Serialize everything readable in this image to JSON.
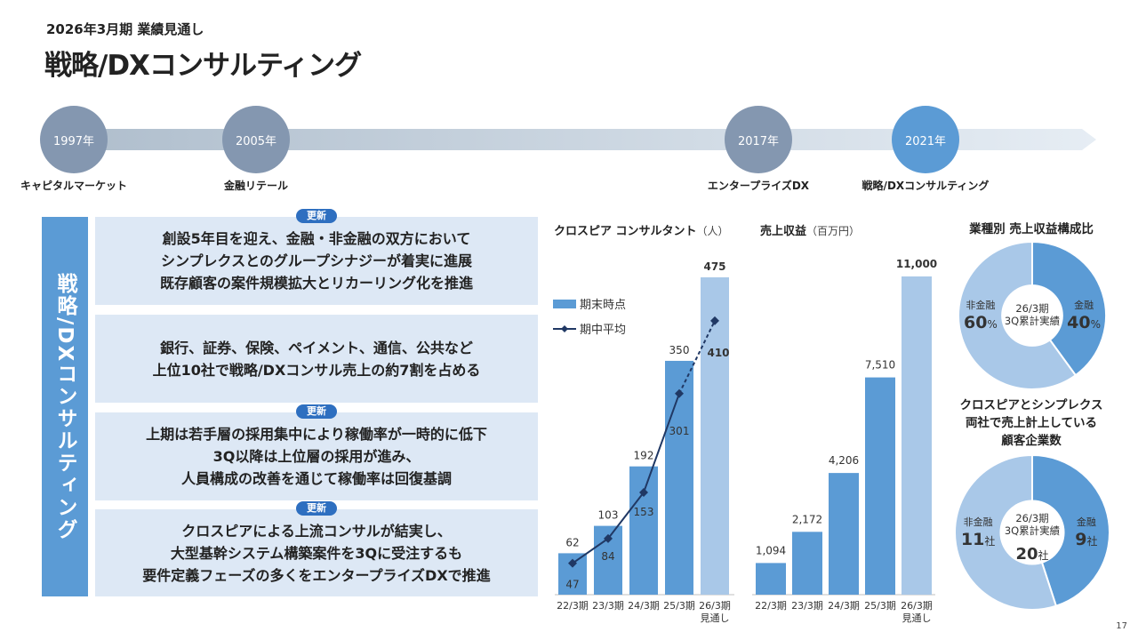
{
  "header": {
    "subtitle": "2026年3月期 業績見通し",
    "title": "戦略/DXコンサルティング"
  },
  "timeline": [
    {
      "year": "1997年",
      "label": "キャピタルマーケット",
      "color": "#8497b0"
    },
    {
      "year": "2005年",
      "label": "金融リテール",
      "color": "#8497b0"
    },
    {
      "year": "2017年",
      "label": "エンタープライズDX",
      "color": "#8497b0"
    },
    {
      "year": "2021年",
      "label": "戦略/DXコンサルティング",
      "color": "#5b9bd5"
    }
  ],
  "sidebar_label": "戦略/DXコンサルティング",
  "badge_label": "更新",
  "boxes": [
    {
      "badge": true,
      "lines": [
        "創設5年目を迎え、金融・非金融の双方において",
        "シンプレクスとのグループシナジーが着実に進展",
        "既存顧客の案件規模拡大とリカーリング化を推進"
      ]
    },
    {
      "badge": false,
      "lines": [
        "銀行、証券、保険、ペイメント、通信、公共など",
        "上位10社で戦略/DXコンサル売上の約7割を占める"
      ]
    },
    {
      "badge": true,
      "lines": [
        "上期は若手層の採用集中により稼働率が一時的に低下",
        "3Q以降は上位層の採用が進み、",
        "人員構成の改善を通じて稼働率は回復基調"
      ]
    },
    {
      "badge": true,
      "lines": [
        "クロスピアによる上流コンサルが結実し、",
        "大型基幹システム構築案件を3Qに受注するも",
        "要件定義フェーズの多くをエンタープライズDXで推進"
      ]
    }
  ],
  "chart_data": [
    {
      "type": "bar",
      "title": "クロスピア コンサルタント",
      "unit": "（人）",
      "categories": [
        "22/3期",
        "23/3期",
        "24/3期",
        "25/3期",
        "26/3期"
      ],
      "category_notes": [
        "",
        "",
        "",
        "",
        "見通し"
      ],
      "series": [
        {
          "name": "期末時点",
          "type": "bar",
          "values": [
            62,
            103,
            192,
            350,
            475
          ]
        },
        {
          "name": "期中平均",
          "type": "line",
          "values": [
            47,
            84,
            153,
            301,
            410
          ]
        }
      ],
      "ylim": [
        0,
        500
      ],
      "colors": {
        "bar": "#5b9bd5",
        "bar_forecast": "#a9c8e8",
        "line": "#203864"
      }
    },
    {
      "type": "bar",
      "title": "売上収益",
      "unit": "（百万円）",
      "categories": [
        "22/3期",
        "23/3期",
        "24/3期",
        "25/3期",
        "26/3期"
      ],
      "category_notes": [
        "",
        "",
        "",
        "",
        "見通し"
      ],
      "series": [
        {
          "name": "売上収益",
          "values": [
            1094,
            2172,
            4206,
            7510,
            11000
          ]
        }
      ],
      "value_labels": [
        "1,094",
        "2,172",
        "4,206",
        "7,510",
        "11,000"
      ],
      "ylim": [
        0,
        11500
      ],
      "colors": {
        "bar": "#5b9bd5",
        "bar_forecast": "#a9c8e8"
      }
    },
    {
      "type": "pie",
      "title": "業種別 売上収益構成比",
      "center_label": [
        "26/3期",
        "3Q累計実績"
      ],
      "slices": [
        {
          "label": "金融",
          "value": 40,
          "display": "40",
          "suffix": "%",
          "color": "#5b9bd5"
        },
        {
          "label": "非金融",
          "value": 60,
          "display": "60",
          "suffix": "%",
          "color": "#a9c8e8"
        }
      ]
    },
    {
      "type": "pie",
      "title": "クロスピアとシンプレクス両社で売上計上している顧客企業数",
      "title_lines": [
        "クロスピアとシンプレクス",
        "両社で売上計上している",
        "顧客企業数"
      ],
      "center_label": [
        "26/3期",
        "3Q累計実績"
      ],
      "center_value": "20",
      "center_suffix": "社",
      "slices": [
        {
          "label": "金融",
          "value": 9,
          "display": "9",
          "suffix": "社",
          "color": "#5b9bd5"
        },
        {
          "label": "非金融",
          "value": 11,
          "display": "11",
          "suffix": "社",
          "color": "#a9c8e8"
        }
      ]
    }
  ],
  "page_number": "17"
}
